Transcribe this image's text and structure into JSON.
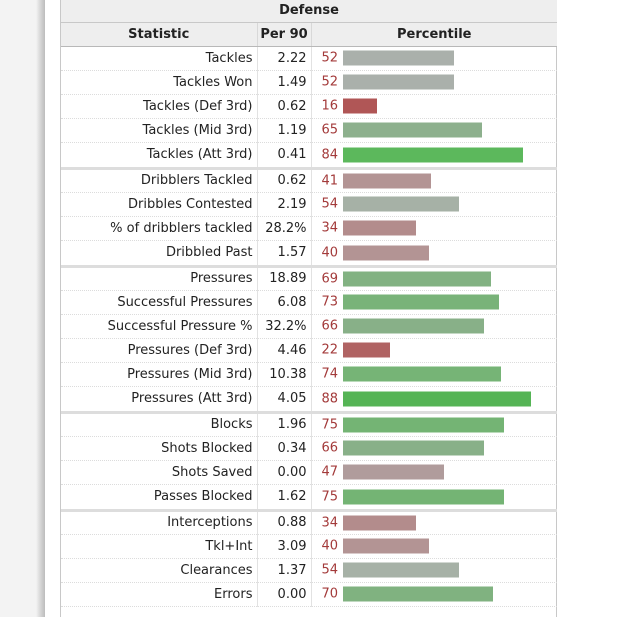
{
  "table": {
    "title": "Defense",
    "headers": {
      "statistic": "Statistic",
      "per90": "Per 90",
      "percentile": "Percentile"
    },
    "rows": [
      {
        "stat": "Tackles",
        "per90": "2.22",
        "pct": "52",
        "color": "#aab0ab"
      },
      {
        "stat": "Tackles Won",
        "per90": "1.49",
        "pct": "52",
        "color": "#aab0ab"
      },
      {
        "stat": "Tackles (Def 3rd)",
        "per90": "0.62",
        "pct": "16",
        "color": "#b05656"
      },
      {
        "stat": "Tackles (Mid 3rd)",
        "per90": "1.19",
        "pct": "65",
        "color": "#8db08d"
      },
      {
        "stat": "Tackles (Att 3rd)",
        "per90": "0.41",
        "pct": "84",
        "color": "#5cb85c",
        "group_end": true
      },
      {
        "stat": "Dribblers Tackled",
        "per90": "0.62",
        "pct": "41",
        "color": "#b39494"
      },
      {
        "stat": "Dribbles Contested",
        "per90": "2.19",
        "pct": "54",
        "color": "#a6b1a6"
      },
      {
        "stat": "% of dribblers tackled",
        "per90": "28.2%",
        "pct": "34",
        "color": "#b38c8c"
      },
      {
        "stat": "Dribbled Past",
        "per90": "1.57",
        "pct": "40",
        "color": "#b39494",
        "group_end": true
      },
      {
        "stat": "Pressures",
        "per90": "18.89",
        "pct": "69",
        "color": "#82b282"
      },
      {
        "stat": "Successful Pressures",
        "per90": "6.08",
        "pct": "73",
        "color": "#79b379"
      },
      {
        "stat": "Successful Pressure %",
        "per90": "32.2%",
        "pct": "66",
        "color": "#88b088"
      },
      {
        "stat": "Pressures (Def 3rd)",
        "per90": "4.46",
        "pct": "22",
        "color": "#b06363"
      },
      {
        "stat": "Pressures (Mid 3rd)",
        "per90": "10.38",
        "pct": "74",
        "color": "#76b476"
      },
      {
        "stat": "Pressures (Att 3rd)",
        "per90": "4.05",
        "pct": "88",
        "color": "#55b455",
        "group_end": true
      },
      {
        "stat": "Blocks",
        "per90": "1.96",
        "pct": "75",
        "color": "#74b474"
      },
      {
        "stat": "Shots Blocked",
        "per90": "0.34",
        "pct": "66",
        "color": "#88b088"
      },
      {
        "stat": "Shots Saved",
        "per90": "0.00",
        "pct": "47",
        "color": "#b09c9c"
      },
      {
        "stat": "Passes Blocked",
        "per90": "1.62",
        "pct": "75",
        "color": "#74b474",
        "group_end": true
      },
      {
        "stat": "Interceptions",
        "per90": "0.88",
        "pct": "34",
        "color": "#b38c8c"
      },
      {
        "stat": "Tkl+Int",
        "per90": "3.09",
        "pct": "40",
        "color": "#b39494"
      },
      {
        "stat": "Clearances",
        "per90": "1.37",
        "pct": "54",
        "color": "#a6b1a6"
      },
      {
        "stat": "Errors",
        "per90": "0.00",
        "pct": "70",
        "color": "#80b280"
      }
    ]
  }
}
